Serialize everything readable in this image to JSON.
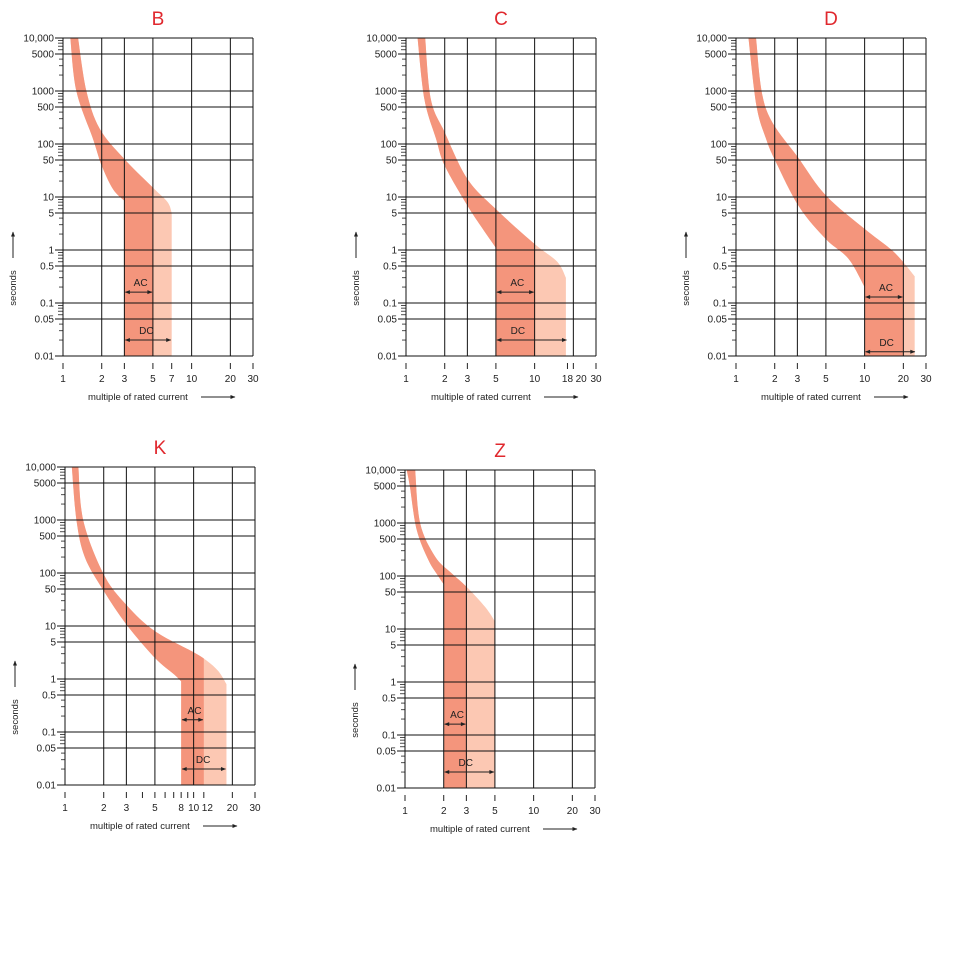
{
  "colors": {
    "band_dark": "#f4957c",
    "band_light": "#fcc8b3",
    "title": "#e0282e",
    "grid": "#111111"
  },
  "y_axis": {
    "label": "seconds",
    "scale": "log",
    "range": [
      0.01,
      10000
    ],
    "ticks": [
      10000,
      5000,
      1000,
      500,
      100,
      50,
      10,
      5,
      1,
      0.5,
      0.1,
      0.05,
      0.01
    ],
    "tick_labels": [
      "10,000",
      "5000",
      "1000",
      "500",
      "100",
      "50",
      "10",
      "5",
      "1",
      "0.5",
      "0.1",
      "0.05",
      "0.01"
    ]
  },
  "x_axis": {
    "label": "multiple of rated current",
    "scale": "log",
    "range": [
      1,
      30
    ],
    "gridlines": [
      2,
      3,
      5,
      10,
      20,
      30
    ]
  },
  "chart_data": [
    {
      "type": "area",
      "title": "B",
      "x_ticks": [
        1,
        2,
        3,
        5,
        7,
        10,
        20,
        30
      ],
      "minor_x_ticks": [],
      "ac_label": "AC",
      "dc_label": "DC",
      "ac_range": [
        3,
        5
      ],
      "dc_range": [
        3,
        7
      ],
      "ac_arrow_t": 0.16,
      "dc_arrow_t": 0.02,
      "lower_curve": [
        [
          1.14,
          10000
        ],
        [
          1.27,
          1000
        ],
        [
          1.71,
          125
        ],
        [
          2,
          39
        ],
        [
          2.45,
          14
        ],
        [
          3,
          8.5
        ],
        [
          3,
          0.01
        ]
      ],
      "upper_curve": [
        [
          1.31,
          10000
        ],
        [
          1.52,
          1000
        ],
        [
          1.93,
          194
        ],
        [
          3,
          52
        ],
        [
          5,
          15
        ],
        [
          6.5,
          8
        ],
        [
          7,
          5
        ],
        [
          7,
          0.01
        ]
      ]
    },
    {
      "type": "area",
      "title": "C",
      "x_ticks": [
        1,
        2,
        3,
        5,
        10,
        18,
        20,
        30
      ],
      "minor_x_ticks": [],
      "ac_label": "AC",
      "dc_label": "DC",
      "ac_range": [
        5,
        10
      ],
      "dc_range": [
        5,
        18
      ],
      "ac_arrow_t": 0.16,
      "dc_arrow_t": 0.02,
      "lower_curve": [
        [
          1.23,
          10000
        ],
        [
          1.39,
          700
        ],
        [
          1.71,
          126
        ],
        [
          2,
          39
        ],
        [
          3,
          6.9
        ],
        [
          3.95,
          2.5
        ],
        [
          5,
          1.1
        ],
        [
          5,
          0.01
        ]
      ],
      "upper_curve": [
        [
          1.41,
          10000
        ],
        [
          1.56,
          700
        ],
        [
          2,
          166
        ],
        [
          3,
          22
        ],
        [
          5,
          5.9
        ],
        [
          10,
          1.3
        ],
        [
          15,
          0.6
        ],
        [
          17.5,
          0.3
        ],
        [
          17.5,
          0.01
        ]
      ]
    },
    {
      "type": "area",
      "title": "D",
      "x_ticks": [
        1,
        2,
        3,
        5,
        10,
        20,
        30
      ],
      "minor_x_ticks": [],
      "ac_label": "AC",
      "dc_label": "DC",
      "ac_range": [
        10,
        20
      ],
      "dc_range": [
        10,
        25
      ],
      "ac_arrow_t": 0.13,
      "dc_arrow_t": 0.012,
      "lower_curve": [
        [
          1.25,
          10000
        ],
        [
          1.44,
          535
        ],
        [
          1.71,
          126
        ],
        [
          2.04,
          46
        ],
        [
          3.1,
          6.5
        ],
        [
          5,
          1.6
        ],
        [
          7.5,
          0.68
        ],
        [
          10,
          0.2
        ],
        [
          10,
          0.01
        ]
      ],
      "upper_curve": [
        [
          1.43,
          10000
        ],
        [
          1.71,
          460
        ],
        [
          3.1,
          52
        ],
        [
          5,
          10.7
        ],
        [
          10,
          2.5
        ],
        [
          17,
          0.9
        ],
        [
          24.5,
          0.32
        ],
        [
          24.5,
          0.01
        ]
      ]
    },
    {
      "type": "area",
      "title": "K",
      "x_ticks": [
        1,
        2,
        3,
        5,
        8,
        10,
        12,
        20,
        30
      ],
      "minor_x_ticks": [
        4,
        6,
        7,
        9
      ],
      "ac_label": "AC",
      "dc_label": "DC",
      "ac_range": [
        8,
        12
      ],
      "dc_range": [
        8,
        18
      ],
      "ac_arrow_t": 0.17,
      "dc_arrow_t": 0.02,
      "lower_curve": [
        [
          1.13,
          10000
        ],
        [
          1.23,
          955
        ],
        [
          1.43,
          195
        ],
        [
          2,
          46
        ],
        [
          3,
          10.7
        ],
        [
          5,
          2.5
        ],
        [
          7.1,
          1.2
        ],
        [
          8,
          0.9
        ],
        [
          8,
          0.01
        ]
      ],
      "upper_curve": [
        [
          1.27,
          10000
        ],
        [
          1.39,
          955
        ],
        [
          2,
          94
        ],
        [
          3,
          25
        ],
        [
          5,
          8
        ],
        [
          10,
          3.2
        ],
        [
          12.7,
          2.2
        ],
        [
          15.6,
          1.4
        ],
        [
          18,
          0.8
        ],
        [
          18,
          0.01
        ]
      ]
    },
    {
      "type": "area",
      "title": "Z",
      "x_ticks": [
        1,
        2,
        3,
        5,
        10,
        20,
        30
      ],
      "minor_x_ticks": [],
      "ac_label": "AC",
      "dc_label": "DC",
      "ac_range": [
        2,
        3
      ],
      "dc_range": [
        2,
        5
      ],
      "ac_arrow_t": 0.16,
      "dc_arrow_t": 0.02,
      "lower_curve": [
        [
          1.03,
          10000
        ],
        [
          1.09,
          5000
        ],
        [
          1.23,
          760
        ],
        [
          1.52,
          200
        ],
        [
          1.81,
          100
        ],
        [
          2,
          70
        ],
        [
          2,
          0.01
        ]
      ],
      "upper_curve": [
        [
          1.2,
          10000
        ],
        [
          1.31,
          1000
        ],
        [
          1.71,
          235
        ],
        [
          2.28,
          115
        ],
        [
          3,
          63
        ],
        [
          4.2,
          26
        ],
        [
          5,
          14
        ],
        [
          5,
          0.01
        ]
      ]
    }
  ]
}
